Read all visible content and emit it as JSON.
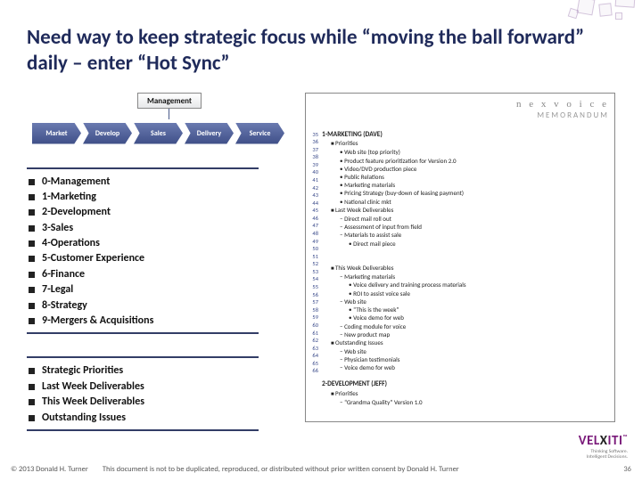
{
  "title": "Need way to keep strategic focus while “moving the ball forward” daily – enter “Hot Sync”",
  "flowchart": {
    "top": "Management",
    "steps": [
      "Market",
      "Develop",
      "Sales",
      "Delivery",
      "Service"
    ]
  },
  "categories": [
    "0-Management",
    "1-Marketing",
    "2-Development",
    "3-Sales",
    "4-Operations",
    "5-Customer Experience",
    "6-Finance",
    "7-Legal",
    "8-Strategy",
    "9-Mergers & Acquisitions"
  ],
  "focus": [
    "Strategic Priorities",
    "Last Week Deliverables",
    "This Week Deliverables",
    "Outstanding Issues"
  ],
  "memo": {
    "logo": "n e x v o i c e",
    "word": "MEMORANDUM",
    "linesStart": 35,
    "linesEnd": 66,
    "sections": [
      {
        "t": "h1",
        "v": "1-MARKETING (DAVE)"
      },
      {
        "t": "b1 sq",
        "v": "Priorities"
      },
      {
        "t": "b2 dot",
        "v": "Web site (top priority)"
      },
      {
        "t": "b2 dot",
        "v": "Product feature prioritization for Version 2.0"
      },
      {
        "t": "b2 dot",
        "v": "Video/DVD production piece"
      },
      {
        "t": "b2 dot",
        "v": "Public Relations"
      },
      {
        "t": "b2 dot",
        "v": "Marketing materials"
      },
      {
        "t": "b2 dot",
        "v": "Pricing Strategy (buy-down of leasing payment)"
      },
      {
        "t": "b2 dot",
        "v": "National clinic mkt"
      },
      {
        "t": "b1 sq",
        "v": "Last Week Deliverables"
      },
      {
        "t": "b2 dash",
        "v": "Direct mail roll out"
      },
      {
        "t": "b2 dash",
        "v": "Assessment of input from field"
      },
      {
        "t": "b2 dash",
        "v": "Materials to assist sale"
      },
      {
        "t": "b3 dot",
        "v": "Direct mail piece"
      },
      {
        "t": "b3",
        "v": ""
      },
      {
        "t": "b3",
        "v": ""
      },
      {
        "t": "b1 sq",
        "v": "This Week Deliverables"
      },
      {
        "t": "b2 dash",
        "v": "Marketing materials"
      },
      {
        "t": "b3 dot",
        "v": "Voice delivery and training process materials"
      },
      {
        "t": "b3 dot",
        "v": "ROI to assist voice sale"
      },
      {
        "t": "b2 dash",
        "v": "Web site"
      },
      {
        "t": "b3 dot",
        "v": "“This is the week”"
      },
      {
        "t": "b3 dot",
        "v": "Voice demo for web"
      },
      {
        "t": "b2 dash",
        "v": "Coding module for voice"
      },
      {
        "t": "b2 dash",
        "v": "New product map"
      },
      {
        "t": "b1 sq",
        "v": "Outstanding Issues"
      },
      {
        "t": "b2 dash",
        "v": "Web site"
      },
      {
        "t": "b2 dash",
        "v": "Physician testimonials"
      },
      {
        "t": "b2 dash",
        "v": "Voice demo for web"
      },
      {
        "t": "b1",
        "v": ""
      },
      {
        "t": "h1",
        "v": "2-DEVELOPMENT (JEFF)"
      },
      {
        "t": "b1 sq",
        "v": "Priorities"
      },
      {
        "t": "b2 dash",
        "v": "“Grandma Quality” Version 1.0"
      }
    ]
  },
  "brand": {
    "name_pre": "VEL",
    "name_x": "X",
    "name_post": "ITI",
    "tag1": "Thinking Software.",
    "tag2": "Intelligent Decisions."
  },
  "footer": {
    "copyright": "© 2013 Donald H. Turner",
    "disclaimer": "This document is not to be duplicated, reproduced, or distributed without prior written consent by Donald H. Turner",
    "page": "36"
  },
  "colors": {
    "title": "#1f2a5a",
    "arrow_grad_top": "#6a7ab0",
    "arrow_grad_bot": "#3f4f88",
    "brand": "#7a1a7a"
  }
}
